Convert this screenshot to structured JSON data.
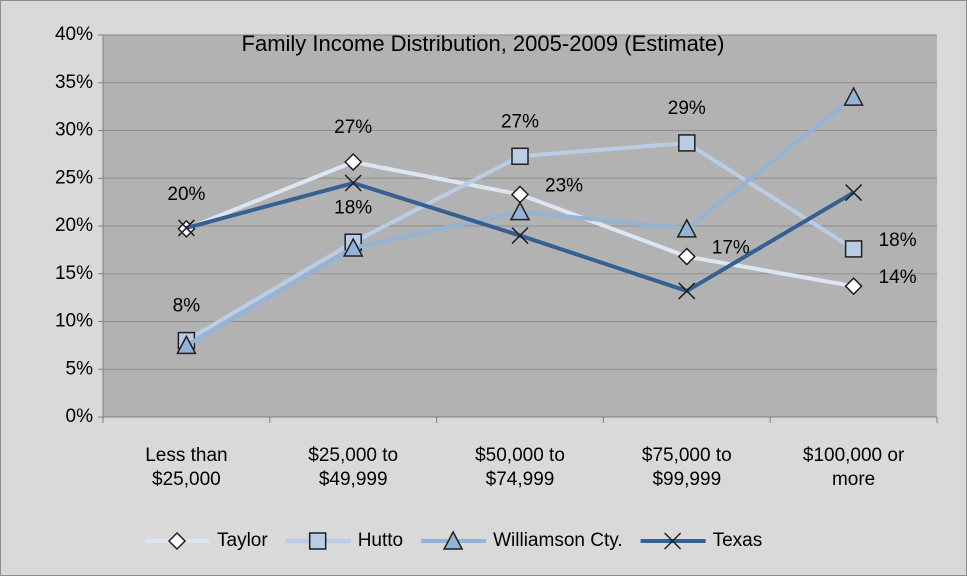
{
  "chart_data": {
    "type": "line",
    "title": "Family Income Distribution, 2005-2009 (Estimate)",
    "categories": [
      "Less than $25,000",
      "$25,000 to $49,999",
      "$50,000 to $74,999",
      "$75,000 to $99,999",
      "$100,000 or more"
    ],
    "ylim": [
      0,
      40
    ],
    "yticks": [
      {
        "value": 0,
        "label": "0%"
      },
      {
        "value": 5,
        "label": "5%"
      },
      {
        "value": 10,
        "label": "10%"
      },
      {
        "value": 15,
        "label": "15%"
      },
      {
        "value": 20,
        "label": "20%"
      },
      {
        "value": 25,
        "label": "25%"
      },
      {
        "value": 30,
        "label": "30%"
      },
      {
        "value": 35,
        "label": "35%"
      },
      {
        "value": 40,
        "label": "40%"
      }
    ],
    "grid": true,
    "legend": "bottom",
    "series": [
      {
        "name": "Taylor",
        "color": "#dce6f2",
        "marker": "diamond",
        "values": [
          19.7,
          26.7,
          23.3,
          16.8,
          13.7
        ],
        "value_labels": [
          "20%",
          "27%",
          "23%",
          "17%",
          "14%"
        ]
      },
      {
        "name": "Hutto",
        "color": "#b9cde5",
        "marker": "square",
        "values": [
          8.0,
          18.3,
          27.3,
          28.7,
          17.6
        ],
        "value_labels": [
          "8%",
          "18%",
          "27%",
          "29%",
          "18%"
        ]
      },
      {
        "name": "Williamson Cty.",
        "color": "#95b3d7",
        "marker": "triangle",
        "values": [
          7.5,
          17.7,
          21.5,
          19.7,
          33.5
        ]
      },
      {
        "name": "Texas",
        "color": "#376092",
        "marker": "x",
        "values": [
          19.8,
          24.5,
          19.0,
          13.2,
          23.5
        ]
      }
    ]
  }
}
